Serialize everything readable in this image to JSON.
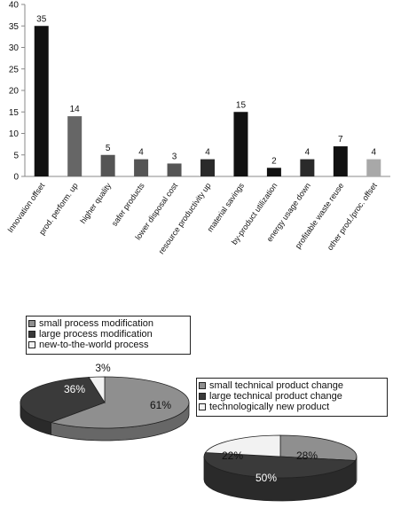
{
  "chart_data": [
    {
      "type": "bar",
      "categories": [
        "Innovation offset",
        "prod. perform. up",
        "higher quality",
        "safer products",
        "lower disposal cost",
        "resource productivity up",
        "material savings",
        "by-product utilization",
        "energy usage down",
        "profitable waste reuse",
        "other prod./proc. offset"
      ],
      "values": [
        35,
        14,
        5,
        4,
        3,
        4,
        15,
        2,
        4,
        7,
        4
      ],
      "data_labels": [
        "35",
        "14",
        "5",
        "4",
        "3",
        "4",
        "15",
        "2",
        "4",
        "7",
        "4"
      ],
      "bar_colors": [
        "#111111",
        "#666666",
        "#555555",
        "#555555",
        "#555555",
        "#2a2a2a",
        "#111111",
        "#111111",
        "#2a2a2a",
        "#111111",
        "#a8a8a8"
      ],
      "ylim": [
        0,
        40
      ],
      "yticks": [
        "0",
        "5",
        "10",
        "15",
        "20",
        "25",
        "30",
        "35",
        "40"
      ],
      "grid": false,
      "title": "",
      "xlabel": "",
      "ylabel": ""
    },
    {
      "type": "pie",
      "labels": [
        "small process modification",
        "large process modification",
        "new-to-the-world process"
      ],
      "values": [
        61,
        36,
        3
      ],
      "slice_labels": [
        "61%",
        "36%",
        "3%"
      ],
      "colors": [
        "#8f8f8f",
        "#3a3a3a",
        "#f2f2f2"
      ],
      "legend": "top"
    },
    {
      "type": "pie",
      "labels": [
        "small technical product change",
        "large technical product change",
        "technologically new product"
      ],
      "values": [
        28,
        50,
        22
      ],
      "slice_labels": [
        "28%",
        "50%",
        "22%"
      ],
      "colors": [
        "#8f8f8f",
        "#3a3a3a",
        "#f2f2f2"
      ],
      "legend": "top"
    }
  ]
}
